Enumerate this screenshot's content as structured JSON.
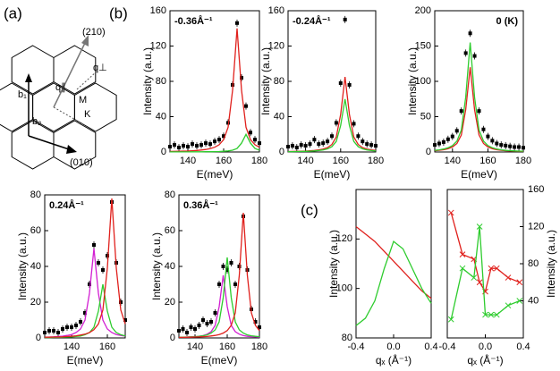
{
  "panel_labels": [
    "(a)",
    "(b)",
    "(c)"
  ],
  "diagram": {
    "labels": [
      "(210)",
      "q⊥",
      "b₁",
      "q∥",
      "M",
      "K",
      "b₂",
      "(010)"
    ]
  },
  "chart_data": [
    {
      "type": "spectrum",
      "annotation": "-0.36Å⁻¹",
      "annotation_corner": "left",
      "xlabel": "E(meV)",
      "ylabel": "Intensity (a.u.)",
      "xlim": [
        130,
        180
      ],
      "xticks": [
        140,
        160,
        180
      ],
      "ylim": [
        0,
        160
      ],
      "yticks": [
        0,
        40,
        80,
        120,
        160
      ],
      "x": [
        130,
        132.5,
        135,
        137.5,
        140,
        142.5,
        145,
        147.5,
        150,
        152.5,
        155,
        157.5,
        160,
        162.5,
        165,
        167.5,
        170,
        172.5,
        175,
        177.5,
        180
      ],
      "series": [
        {
          "color": "#000000",
          "mode": "markers",
          "values": [
            6,
            8,
            5,
            7,
            6,
            9,
            7,
            8,
            10,
            9,
            12,
            14,
            18,
            33,
            76,
            146,
            84,
            52,
            22,
            14,
            10
          ]
        },
        {
          "color": "#e0201c",
          "mode": "line",
          "values": [
            0.6,
            0.7,
            0.8,
            1,
            1.1,
            1.4,
            1.7,
            2.2,
            2.8,
            3.8,
            5.4,
            8.2,
            14,
            28,
            70,
            140,
            70,
            28,
            14,
            8.2,
            5.4
          ]
        },
        {
          "color": "#2ecc2e",
          "mode": "line",
          "values": [
            0.1,
            0.1,
            0.1,
            0.1,
            0.1,
            0.2,
            0.2,
            0.2,
            0.3,
            0.3,
            0.4,
            0.5,
            0.8,
            1.2,
            2,
            4,
            10,
            20,
            10,
            4,
            2
          ]
        }
      ]
    },
    {
      "type": "spectrum",
      "annotation": "-0.24Å⁻¹",
      "annotation_corner": "left",
      "xlabel": "E(meV)",
      "ylabel": "Intensity (a.u.)",
      "xlim": [
        130,
        180
      ],
      "xticks": [
        140,
        160,
        180
      ],
      "ylim": [
        0,
        160
      ],
      "yticks": [
        0,
        40,
        80,
        120,
        160
      ],
      "x": [
        130,
        132.5,
        135,
        137.5,
        140,
        142.5,
        145,
        147.5,
        150,
        152.5,
        155,
        157.5,
        160,
        162.5,
        165,
        167.5,
        170,
        172.5,
        175,
        177.5,
        180
      ],
      "series": [
        {
          "color": "#000000",
          "mode": "markers",
          "values": [
            6,
            7,
            5,
            8,
            7,
            9,
            14,
            9,
            10,
            12,
            18,
            33,
            78,
            150,
            76,
            32,
            18,
            12,
            9,
            8,
            7
          ]
        },
        {
          "color": "#e0201c",
          "mode": "line",
          "values": [
            0.5,
            0.6,
            0.7,
            0.8,
            1,
            1.3,
            1.7,
            2.3,
            3.2,
            5,
            8.5,
            17,
            42.5,
            85,
            42.5,
            17,
            8.5,
            5,
            3.2,
            2.3,
            1.7
          ]
        },
        {
          "color": "#2ecc2e",
          "mode": "line",
          "values": [
            0.4,
            0.4,
            0.5,
            0.6,
            0.7,
            0.9,
            1.2,
            1.6,
            2.3,
            3.5,
            6,
            12,
            30,
            60,
            30,
            12,
            6,
            3.5,
            2.3,
            1.6,
            1.2
          ]
        }
      ]
    },
    {
      "type": "spectrum",
      "annotation": "0 (K)",
      "annotation_corner": "right",
      "xlabel": "E(meV)",
      "ylabel": "Intensity (a.u.)",
      "xlim": [
        130,
        180
      ],
      "xticks": [
        140,
        160,
        180
      ],
      "ylim": [
        0,
        200
      ],
      "yticks": [
        0,
        50,
        100,
        150,
        200
      ],
      "x": [
        130,
        132.5,
        135,
        137.5,
        140,
        142.5,
        145,
        147.5,
        150,
        152.5,
        155,
        157.5,
        160,
        162.5,
        165,
        167.5,
        170,
        172.5,
        175,
        177.5,
        180
      ],
      "series": [
        {
          "color": "#000000",
          "mode": "markers",
          "values": [
            10,
            12,
            14,
            18,
            22,
            30,
            58,
            140,
            168,
            136,
            58,
            32,
            22,
            16,
            12,
            10,
            9,
            8,
            7,
            7,
            6
          ]
        },
        {
          "color": "#e0201c",
          "mode": "line",
          "values": [
            1.8,
            2.4,
            3.2,
            4.6,
            7.1,
            12,
            24,
            60,
            120,
            60,
            24,
            12,
            7.1,
            4.6,
            3.2,
            2.4,
            1.8,
            1.4,
            1.2,
            1,
            0.8
          ]
        },
        {
          "color": "#2ecc2e",
          "mode": "line",
          "values": [
            2.3,
            3.1,
            4.2,
            5.9,
            9.1,
            15.5,
            31,
            77.5,
            155,
            77.5,
            31,
            15.5,
            9.1,
            5.9,
            4.2,
            3.1,
            2.3,
            1.9,
            1.5,
            1.3,
            1.1
          ]
        }
      ]
    },
    {
      "type": "spectrum",
      "annotation": "0.24Å⁻¹",
      "annotation_corner": "left",
      "xlabel": "E(meV)",
      "ylabel": "Intensity (a.u.)",
      "xlim": [
        125,
        170
      ],
      "xticks": [
        140,
        160
      ],
      "ylim": [
        0,
        80
      ],
      "yticks": [
        0,
        20,
        40,
        60,
        80
      ],
      "x": [
        125,
        127.5,
        130,
        132.5,
        135,
        137.5,
        140,
        142.5,
        145,
        147.5,
        150,
        152.5,
        155,
        157.5,
        160,
        162.5,
        165,
        167.5,
        170
      ],
      "series": [
        {
          "color": "#000000",
          "mode": "markers",
          "values": [
            3,
            4,
            4,
            3,
            5,
            6,
            6,
            7,
            9,
            14,
            30,
            52,
            42,
            38,
            46,
            76,
            42,
            20,
            10
          ]
        },
        {
          "color": "#d21fd2",
          "mode": "line",
          "values": [
            0.4,
            0.5,
            0.6,
            0.8,
            1,
            1.4,
            1.9,
            3,
            5,
            10,
            25,
            50,
            25,
            10,
            5,
            3,
            1.9,
            1.4,
            1
          ]
        },
        {
          "color": "#2ecc2e",
          "mode": "line",
          "values": [
            0.2,
            0.2,
            0.3,
            0.3,
            0.4,
            0.5,
            0.6,
            0.8,
            1.1,
            1.8,
            3,
            6,
            15,
            30,
            15,
            6,
            3,
            1.8,
            1.1
          ]
        },
        {
          "color": "#e0201c",
          "mode": "line",
          "values": [
            0.4,
            0.4,
            0.5,
            0.5,
            0.6,
            0.8,
            0.9,
            1.2,
            1.6,
            2.1,
            3,
            4.6,
            7.8,
            15.6,
            39,
            78,
            39,
            15.6,
            7.8
          ]
        }
      ]
    },
    {
      "type": "spectrum",
      "annotation": "0.36Å⁻¹",
      "annotation_corner": "left",
      "xlabel": "E(meV)",
      "ylabel": "Intensity (a.u.)",
      "xlim": [
        130,
        180
      ],
      "xticks": [
        140,
        160,
        180
      ],
      "ylim": [
        0,
        80
      ],
      "yticks": [
        0,
        20,
        40,
        60,
        80
      ],
      "x": [
        130,
        132.5,
        135,
        137.5,
        140,
        142.5,
        145,
        147.5,
        150,
        152.5,
        155,
        157.5,
        160,
        162.5,
        165,
        167.5,
        170,
        172.5,
        175,
        177.5,
        180
      ],
      "series": [
        {
          "color": "#000000",
          "mode": "markers",
          "values": [
            4,
            5,
            3,
            6,
            5,
            7,
            10,
            8,
            9,
            14,
            30,
            40,
            38,
            42,
            30,
            40,
            68,
            38,
            16,
            9,
            6
          ]
        },
        {
          "color": "#d21fd2",
          "mode": "line",
          "values": [
            0.3,
            0.4,
            0.4,
            0.6,
            0.7,
            0.9,
            1.3,
            2.1,
            3.5,
            7,
            17.5,
            35,
            17.5,
            7,
            3.5,
            2.1,
            1.3,
            0.9,
            0.7,
            0.6,
            0.4
          ]
        },
        {
          "color": "#2ecc2e",
          "mode": "line",
          "values": [
            0.3,
            0.4,
            0.5,
            0.6,
            0.7,
            0.9,
            1.2,
            1.7,
            2.7,
            4.5,
            9,
            22.5,
            45,
            22.5,
            9,
            4.5,
            2.7,
            1.7,
            1.2,
            0.9,
            0.7
          ]
        },
        {
          "color": "#e0201c",
          "mode": "line",
          "values": [
            0.3,
            0.3,
            0.4,
            0.4,
            0.5,
            0.6,
            0.7,
            0.8,
            1.1,
            1.4,
            1.9,
            2.7,
            4.1,
            7,
            14,
            35,
            70,
            35,
            14,
            7,
            4.1
          ]
        }
      ]
    },
    {
      "type": "line",
      "xlabel": "qₓ (Å⁻¹)",
      "ylabel": "Intensity (a.u.)",
      "y_axis_side": "left",
      "xlim": [
        -0.4,
        0.4
      ],
      "xticks": [
        -0.4,
        {
          "value": 0,
          "label": "0.0"
        },
        0.4
      ],
      "ylim": [
        80,
        140
      ],
      "yticks": [
        80,
        100,
        120
      ],
      "x": [
        -0.4,
        -0.3,
        -0.2,
        -0.1,
        0,
        0.1,
        0.2,
        0.3,
        0.4
      ],
      "series": [
        {
          "color": "#e0201c",
          "mode": "line",
          "values": [
            125,
            122,
            119,
            115,
            111,
            107,
            103,
            99,
            96
          ]
        },
        {
          "color": "#2ecc2e",
          "mode": "line",
          "values": [
            85,
            88,
            95,
            108,
            119,
            116,
            108,
            100,
            94
          ]
        }
      ]
    },
    {
      "type": "line",
      "xlabel": "qₓ (Å⁻¹)",
      "ylabel": "Intensity (a.u.)",
      "y_axis_side": "right",
      "xlim": [
        -0.4,
        0.4
      ],
      "xticks": [
        -0.4,
        {
          "value": 0,
          "label": "0.0"
        },
        0.4
      ],
      "ylim": [
        0,
        160
      ],
      "yticks": [
        40,
        80,
        120,
        160
      ],
      "x": [
        -0.36,
        -0.24,
        -0.12,
        -0.06,
        0,
        0.06,
        0.12,
        0.24,
        0.36
      ],
      "series": [
        {
          "color": "#e0201c",
          "mode": "line",
          "marker": "cross",
          "values": [
            135,
            90,
            85,
            60,
            50,
            75,
            75,
            65,
            60
          ]
        },
        {
          "color": "#2ecc2e",
          "mode": "line",
          "marker": "cross",
          "values": [
            20,
            75,
            65,
            120,
            25,
            25,
            25,
            35,
            40
          ]
        }
      ]
    }
  ]
}
